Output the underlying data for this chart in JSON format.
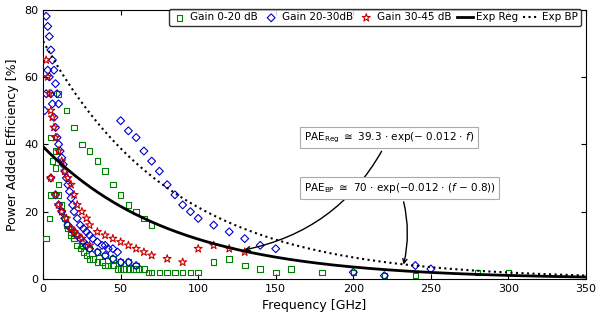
{
  "xlabel": "Frequency [GHz]",
  "ylabel": "Power Added Efficiency [%]",
  "xlim": [
    0,
    350
  ],
  "ylim": [
    0,
    80
  ],
  "yticks": [
    0,
    20,
    40,
    60,
    80
  ],
  "xticks": [
    0,
    50,
    100,
    150,
    200,
    250,
    300,
    350
  ],
  "reg_a": 39.3,
  "reg_b": -0.012,
  "bp_a": 70,
  "bp_b": -0.012,
  "bp_shift": 0.8,
  "green_color": "#008000",
  "blue_color": "#0000cc",
  "red_color": "#cc0000",
  "reg_color": "#000000",
  "bp_color": "#000000",
  "legend_labels": [
    "Gain 0-20 dB",
    "Gain 20-30dB",
    "Gain 30-45 dB",
    "Exp Reg",
    "Exp BP"
  ],
  "gx": [
    2,
    4,
    5,
    6,
    8,
    10,
    12,
    14,
    16,
    18,
    20,
    22,
    24,
    26,
    28,
    30,
    32,
    35,
    38,
    40,
    42,
    45,
    48,
    50,
    52,
    55,
    58,
    60,
    62,
    65,
    68,
    70,
    75,
    80,
    85,
    90,
    95,
    100,
    110,
    120,
    130,
    140,
    150,
    160,
    180,
    200,
    220,
    240,
    280,
    300,
    5,
    8,
    10,
    12,
    15,
    18,
    20,
    25,
    30,
    35,
    40,
    45,
    50,
    55,
    60,
    10,
    15,
    20,
    25,
    30,
    35,
    40,
    45,
    50,
    55,
    60,
    65,
    70
  ],
  "gy": [
    12,
    18,
    25,
    35,
    38,
    28,
    22,
    18,
    15,
    13,
    12,
    10,
    9,
    8,
    7,
    6,
    6,
    5,
    5,
    4,
    4,
    4,
    3,
    3,
    3,
    3,
    3,
    3,
    3,
    3,
    2,
    2,
    2,
    2,
    2,
    2,
    2,
    2,
    5,
    6,
    4,
    3,
    2,
    3,
    2,
    2,
    1,
    1,
    2,
    2,
    42,
    33,
    25,
    20,
    16,
    14,
    12,
    10,
    9,
    8,
    7,
    6,
    5,
    5,
    4,
    55,
    50,
    45,
    40,
    38,
    35,
    32,
    28,
    25,
    22,
    20,
    18,
    16
  ],
  "bx": [
    1,
    2,
    3,
    4,
    5,
    6,
    7,
    8,
    9,
    10,
    11,
    12,
    13,
    14,
    15,
    16,
    17,
    18,
    19,
    20,
    22,
    24,
    26,
    28,
    30,
    32,
    35,
    38,
    40,
    42,
    45,
    48,
    50,
    55,
    60,
    65,
    70,
    75,
    80,
    85,
    90,
    95,
    100,
    110,
    120,
    130,
    140,
    150,
    200,
    220,
    240,
    250,
    5,
    8,
    10,
    12,
    14,
    16,
    18,
    20,
    22,
    24,
    26,
    28,
    30,
    35,
    40,
    45,
    50,
    55,
    60,
    2,
    3,
    4,
    5,
    6,
    7,
    8,
    9,
    10
  ],
  "by": [
    50,
    55,
    62,
    60,
    55,
    52,
    48,
    45,
    42,
    40,
    38,
    36,
    34,
    32,
    30,
    28,
    26,
    24,
    22,
    20,
    18,
    16,
    15,
    14,
    13,
    12,
    11,
    10,
    10,
    9,
    9,
    8,
    47,
    44,
    42,
    38,
    35,
    32,
    28,
    25,
    22,
    20,
    18,
    16,
    14,
    12,
    10,
    9,
    2,
    1,
    4,
    3,
    30,
    25,
    22,
    20,
    18,
    16,
    15,
    14,
    13,
    12,
    11,
    10,
    9,
    8,
    7,
    6,
    5,
    5,
    4,
    78,
    75,
    72,
    68,
    65,
    62,
    58,
    55,
    52
  ],
  "rx": [
    2,
    3,
    4,
    5,
    6,
    7,
    8,
    10,
    12,
    14,
    16,
    18,
    20,
    22,
    25,
    28,
    30,
    35,
    40,
    45,
    50,
    55,
    60,
    65,
    70,
    80,
    90,
    100,
    110,
    120,
    130,
    5,
    8,
    10,
    12,
    15,
    18,
    20,
    22,
    25,
    30
  ],
  "ry": [
    65,
    60,
    55,
    50,
    48,
    45,
    42,
    38,
    35,
    32,
    30,
    28,
    25,
    22,
    20,
    18,
    16,
    14,
    13,
    12,
    11,
    10,
    9,
    8,
    7,
    6,
    5,
    9,
    10,
    9,
    8,
    30,
    25,
    22,
    20,
    18,
    15,
    14,
    13,
    12,
    10
  ]
}
